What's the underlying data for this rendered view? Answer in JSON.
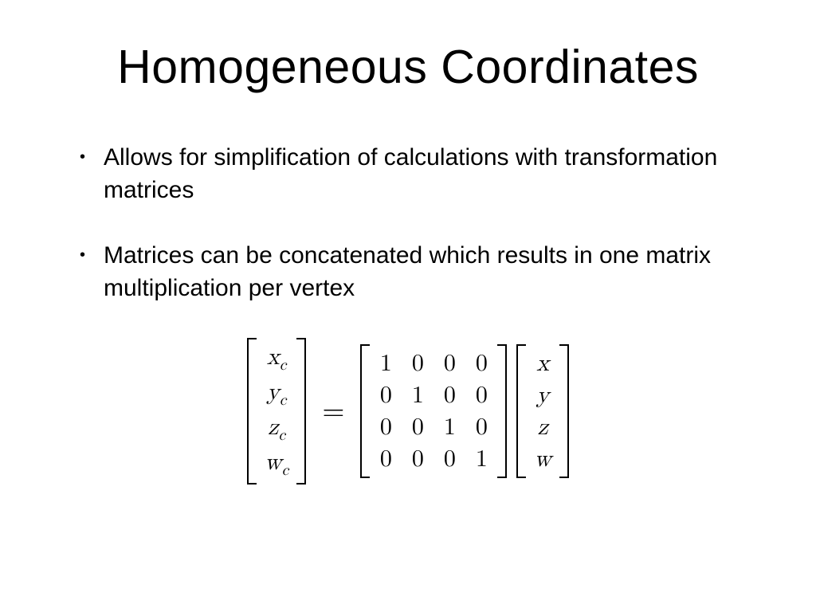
{
  "title": "Homogeneous Coordinates",
  "bullets": [
    "Allows for simplification of calculations with transformation matrices",
    "Matrices can be concatenated which results in one matrix multiplication per vertex"
  ],
  "equation": {
    "result_vector": {
      "rows": [
        {
          "base": "x",
          "sub": "c"
        },
        {
          "base": "y",
          "sub": "c"
        },
        {
          "base": "z",
          "sub": "c"
        },
        {
          "base": "w",
          "sub": "c"
        }
      ]
    },
    "equals": "=",
    "matrix_4x4": {
      "rows": [
        [
          "1",
          "0",
          "0",
          "0"
        ],
        [
          "0",
          "1",
          "0",
          "0"
        ],
        [
          "0",
          "0",
          "1",
          "0"
        ],
        [
          "0",
          "0",
          "0",
          "1"
        ]
      ]
    },
    "input_vector": {
      "rows": [
        "x",
        "y",
        "z",
        "w"
      ]
    }
  },
  "style": {
    "background_color": "#ffffff",
    "text_color": "#000000",
    "title_fontsize": 59,
    "body_fontsize": 30,
    "equation_fontsize": 30,
    "bracket_color": "#000000",
    "bracket_width": 2
  }
}
